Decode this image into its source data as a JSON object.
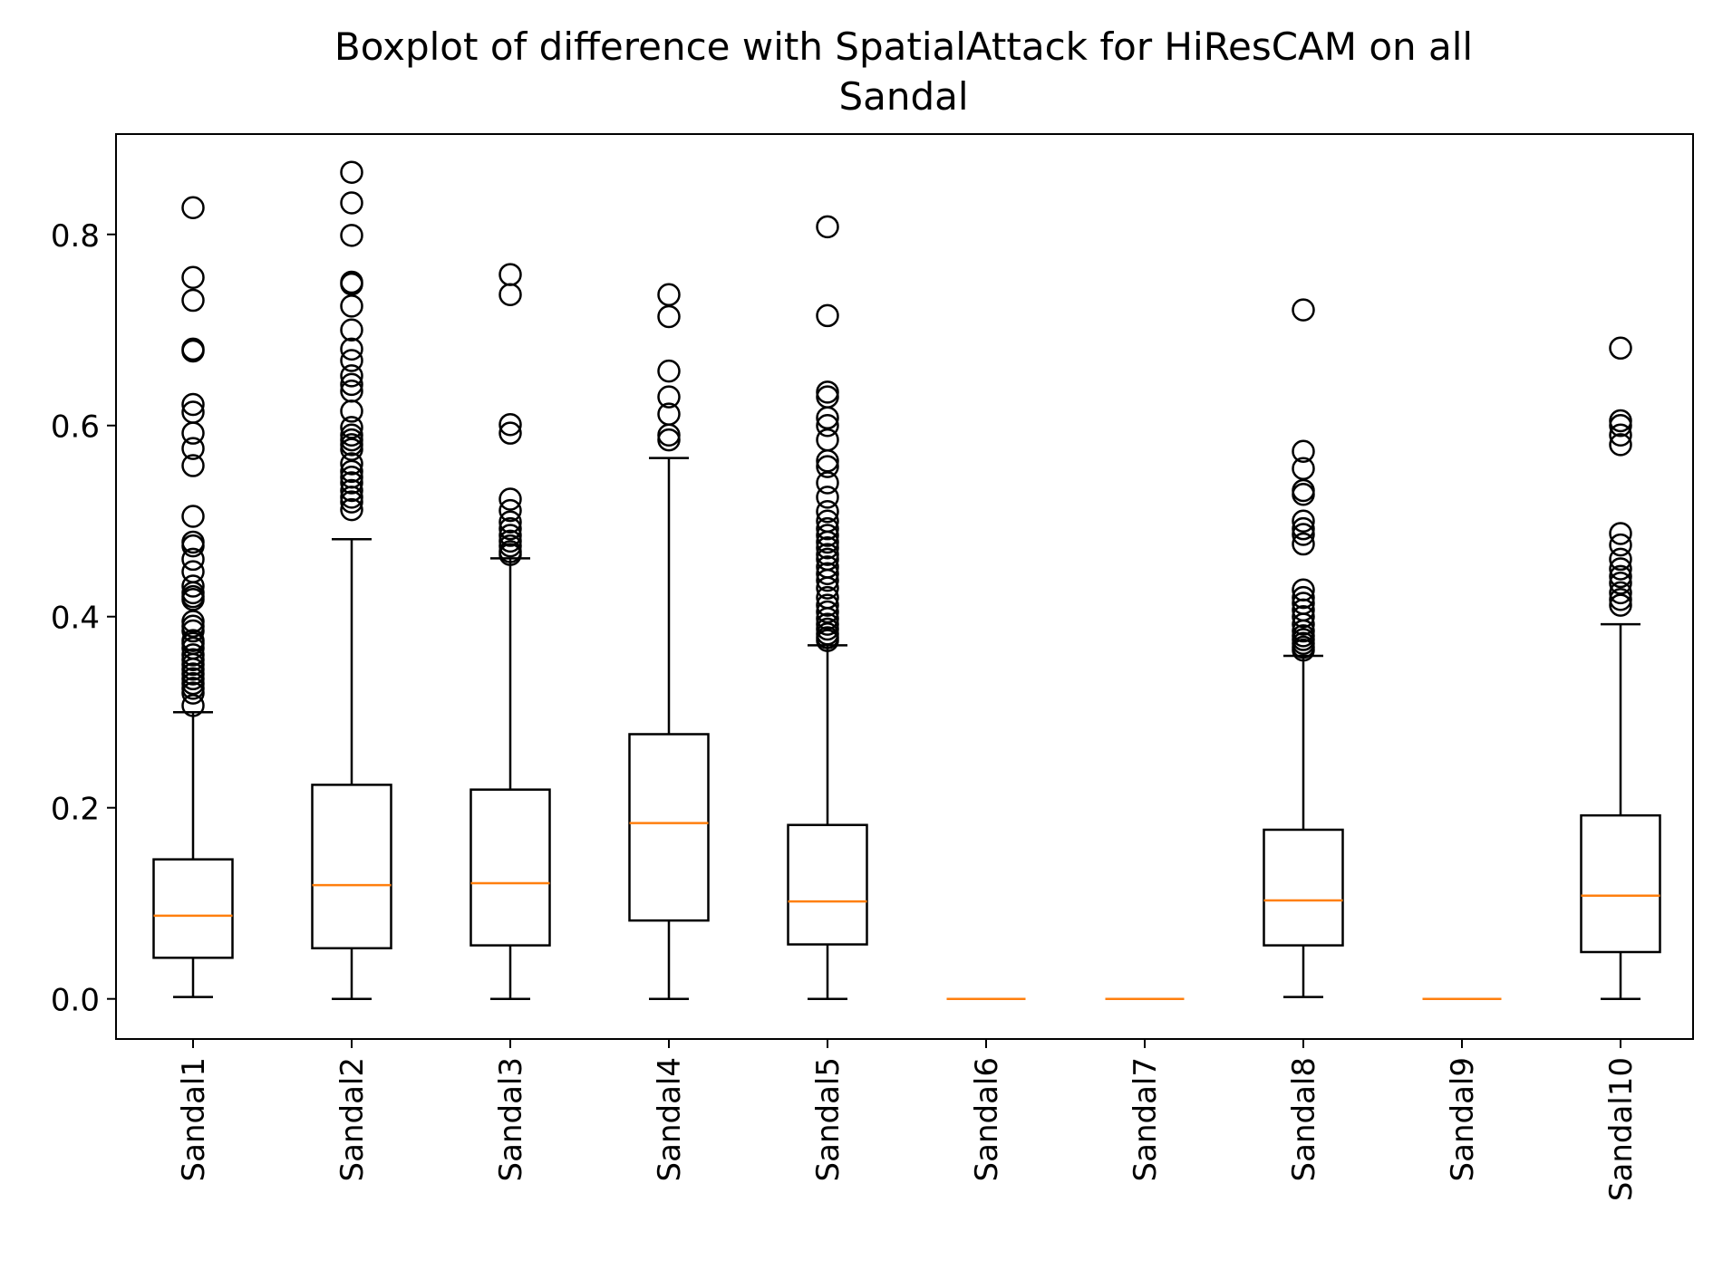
{
  "chart_data": {
    "type": "boxplot",
    "title_lines": [
      "Boxplot of difference with SpatialAttack for HiResCAM on all",
      "Sandal"
    ],
    "xlabel": "",
    "ylabel": "",
    "ylim": [
      -0.042,
      0.905
    ],
    "yticks": [
      0.0,
      0.2,
      0.4,
      0.6,
      0.8
    ],
    "ytick_labels": [
      "0.0",
      "0.2",
      "0.4",
      "0.6",
      "0.8"
    ],
    "categories": [
      "Sandal1",
      "Sandal2",
      "Sandal3",
      "Sandal4",
      "Sandal5",
      "Sandal6",
      "Sandal7",
      "Sandal8",
      "Sandal9",
      "Sandal10"
    ],
    "colors": {
      "box": "#000000",
      "median": "#ff7f0e",
      "flier": "#000000"
    },
    "boxes": [
      {
        "whislo": 0.002,
        "q1": 0.043,
        "med": 0.087,
        "q3": 0.146,
        "whishi": 0.3,
        "fliers": [
          0.828,
          0.755,
          0.731,
          0.68,
          0.678,
          0.622,
          0.614,
          0.592,
          0.576,
          0.558,
          0.505,
          0.478,
          0.474,
          0.46,
          0.447,
          0.432,
          0.425,
          0.421,
          0.418,
          0.395,
          0.39,
          0.385,
          0.375,
          0.372,
          0.367,
          0.36,
          0.355,
          0.35,
          0.345,
          0.34,
          0.335,
          0.33,
          0.325,
          0.32,
          0.307
        ]
      },
      {
        "whislo": 0.0,
        "q1": 0.053,
        "med": 0.119,
        "q3": 0.224,
        "whishi": 0.481,
        "fliers": [
          0.865,
          0.833,
          0.799,
          0.75,
          0.748,
          0.725,
          0.7,
          0.68,
          0.668,
          0.652,
          0.643,
          0.636,
          0.615,
          0.598,
          0.59,
          0.585,
          0.58,
          0.575,
          0.56,
          0.552,
          0.546,
          0.54,
          0.532,
          0.525,
          0.52,
          0.512
        ]
      },
      {
        "whislo": 0.0,
        "q1": 0.056,
        "med": 0.121,
        "q3": 0.219,
        "whishi": 0.461,
        "fliers": [
          0.758,
          0.737,
          0.601,
          0.592,
          0.523,
          0.511,
          0.499,
          0.492,
          0.485,
          0.479,
          0.474,
          0.468,
          0.465
        ]
      },
      {
        "whislo": 0.0,
        "q1": 0.082,
        "med": 0.184,
        "q3": 0.277,
        "whishi": 0.566,
        "fliers": [
          0.737,
          0.714,
          0.657,
          0.63,
          0.612,
          0.59,
          0.585
        ]
      },
      {
        "whislo": 0.0,
        "q1": 0.057,
        "med": 0.102,
        "q3": 0.182,
        "whishi": 0.37,
        "fliers": [
          0.808,
          0.715,
          0.635,
          0.63,
          0.608,
          0.6,
          0.585,
          0.563,
          0.557,
          0.54,
          0.525,
          0.51,
          0.5,
          0.492,
          0.485,
          0.478,
          0.472,
          0.465,
          0.46,
          0.452,
          0.445,
          0.438,
          0.43,
          0.42,
          0.412,
          0.405,
          0.398,
          0.392,
          0.387,
          0.382,
          0.378,
          0.375
        ]
      },
      {
        "whislo": 0.0,
        "q1": 0.0,
        "med": 0.0,
        "q3": 0.0,
        "whishi": 0.0,
        "fliers": []
      },
      {
        "whislo": 0.0,
        "q1": 0.0,
        "med": 0.0,
        "q3": 0.0,
        "whishi": 0.0,
        "fliers": []
      },
      {
        "whislo": 0.002,
        "q1": 0.056,
        "med": 0.103,
        "q3": 0.177,
        "whishi": 0.359,
        "fliers": [
          0.721,
          0.573,
          0.555,
          0.532,
          0.528,
          0.5,
          0.492,
          0.486,
          0.476,
          0.428,
          0.42,
          0.414,
          0.407,
          0.4,
          0.392,
          0.385,
          0.38,
          0.376,
          0.372,
          0.368,
          0.365
        ]
      },
      {
        "whislo": 0.0,
        "q1": 0.0,
        "med": 0.0,
        "q3": 0.0,
        "whishi": 0.0,
        "fliers": []
      },
      {
        "whislo": 0.0,
        "q1": 0.049,
        "med": 0.108,
        "q3": 0.192,
        "whishi": 0.392,
        "fliers": [
          0.681,
          0.605,
          0.6,
          0.59,
          0.58,
          0.487,
          0.475,
          0.46,
          0.45,
          0.442,
          0.435,
          0.425,
          0.418,
          0.412
        ]
      }
    ]
  }
}
